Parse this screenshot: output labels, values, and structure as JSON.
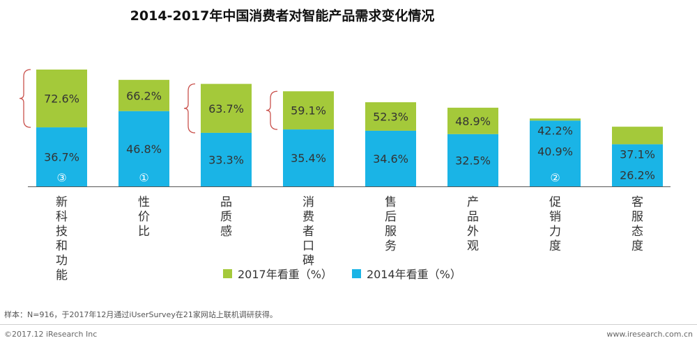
{
  "title": "2014-2017年中国消费者对智能产品需求变化情况",
  "note": "样本：N=916，于2017年12月通过iUserSurvey在21家网站上联机调研获得。",
  "footer": {
    "left": "©2017.12 iResearch Inc",
    "right": "www.iresearch.com.cn"
  },
  "colors": {
    "s2017": "#a4c93a",
    "s2014": "#1ab4e6"
  },
  "legend": [
    {
      "label": "2017年看重（%）",
      "color": "#a4c93a"
    },
    {
      "label": "2014年看重（%）",
      "color": "#1ab4e6"
    }
  ],
  "chart_data": {
    "type": "bar",
    "categories": [
      "新科技和功能",
      "性价比",
      "品质感",
      "消费者口碑",
      "售后服务",
      "产品外观",
      "促销力度",
      "客服态度"
    ],
    "series": [
      {
        "name": "2017年看重（%）",
        "values": [
          72.6,
          66.2,
          63.7,
          59.1,
          52.3,
          48.9,
          42.2,
          37.1
        ],
        "labels": [
          "72.6%",
          "66.2%",
          "63.7%",
          "59.1%",
          "52.3%",
          "48.9%",
          "42.2%",
          "37.1%"
        ]
      },
      {
        "name": "2014年看重（%）",
        "values": [
          36.7,
          46.8,
          33.3,
          35.4,
          34.6,
          32.5,
          40.9,
          26.2
        ],
        "labels": [
          "36.7%",
          "46.8%",
          "33.3%",
          "35.4%",
          "34.6%",
          "32.5%",
          "40.9%",
          "26.2%"
        ]
      }
    ],
    "rank_markers": [
      {
        "category_index": 0,
        "text": "③"
      },
      {
        "category_index": 1,
        "text": "①"
      },
      {
        "category_index": 6,
        "text": "②"
      }
    ],
    "brackets": [
      0,
      2,
      3
    ],
    "ylim": [
      0,
      72.6
    ],
    "legend_position": "bottom"
  }
}
